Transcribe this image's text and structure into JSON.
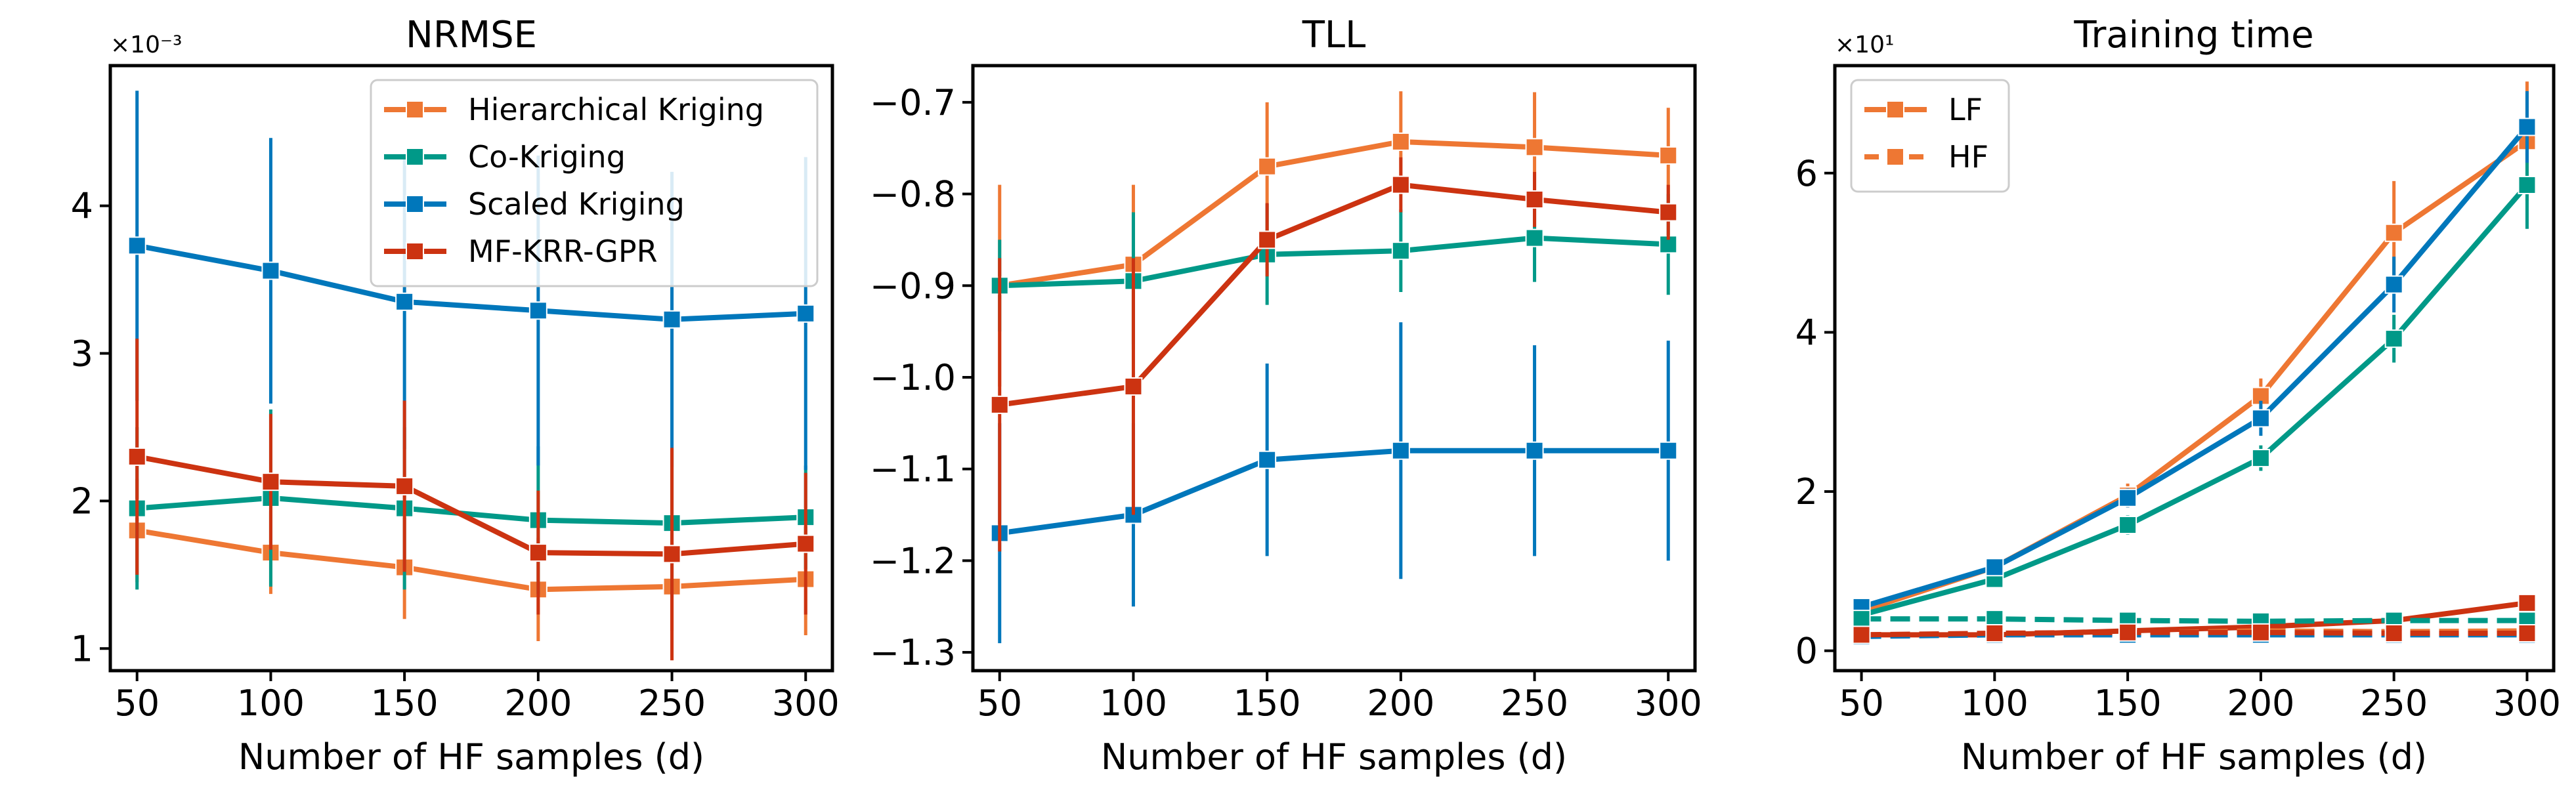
{
  "chart_data": [
    {
      "type": "line",
      "title": "NRMSE",
      "xlabel": "Number of HF samples (d)",
      "ylabel": "",
      "multiplier_label": "×10⁻³",
      "x": [
        50,
        100,
        150,
        200,
        250,
        300
      ],
      "xlim": [
        40,
        310
      ],
      "ylim": [
        0.85,
        4.95
      ],
      "xticks": [
        50,
        100,
        150,
        200,
        250,
        300
      ],
      "xtick_labels": [
        "50",
        "100",
        "150",
        "200",
        "250",
        "300"
      ],
      "yticks": [
        1,
        2,
        3,
        4
      ],
      "ytick_labels": [
        "1",
        "2",
        "3",
        "4"
      ],
      "legend_position": "top-right",
      "series": [
        {
          "name": "Hierarchical Kriging",
          "color": "#EE7733",
          "linestyle": "solid",
          "values": [
            1.8,
            1.65,
            1.55,
            1.4,
            1.42,
            1.47
          ],
          "error": [
            0.35,
            0.28,
            0.35,
            0.35,
            0.3,
            0.38
          ]
        },
        {
          "name": "Co-Kriging",
          "color": "#009988",
          "linestyle": "solid",
          "values": [
            1.95,
            2.02,
            1.95,
            1.87,
            1.85,
            1.89
          ],
          "error": [
            0.55,
            0.6,
            0.55,
            0.5,
            0.5,
            0.35
          ]
        },
        {
          "name": "Scaled Kriging",
          "color": "#0077BB",
          "linestyle": "solid",
          "values": [
            3.73,
            3.56,
            3.35,
            3.29,
            3.23,
            3.27
          ],
          "error": [
            1.05,
            0.9,
            1.0,
            1.05,
            1.0,
            1.06
          ]
        },
        {
          "name": "MF-KRR-GPR",
          "color": "#CC3311",
          "linestyle": "solid",
          "values": [
            2.3,
            2.13,
            2.1,
            1.65,
            1.64,
            1.71
          ],
          "error": [
            0.8,
            0.46,
            0.58,
            0.42,
            0.72,
            0.48
          ]
        }
      ]
    },
    {
      "type": "line",
      "title": "TLL",
      "xlabel": "Number of HF samples (d)",
      "ylabel": "",
      "x": [
        50,
        100,
        150,
        200,
        250,
        300
      ],
      "xlim": [
        40,
        310
      ],
      "ylim": [
        -1.32,
        -0.66
      ],
      "xticks": [
        50,
        100,
        150,
        200,
        250,
        300
      ],
      "xtick_labels": [
        "50",
        "100",
        "150",
        "200",
        "250",
        "300"
      ],
      "yticks": [
        -0.7,
        -0.8,
        -0.9,
        -1.0,
        -1.1,
        -1.2,
        -1.3
      ],
      "ytick_labels": [
        "−0.7",
        "−0.8",
        "−0.9",
        "−1.0",
        "−1.1",
        "−1.2",
        "−1.3"
      ],
      "series": [
        {
          "name": "Hierarchical Kriging",
          "color": "#EE7733",
          "linestyle": "solid",
          "values": [
            -0.9,
            -0.877,
            -0.77,
            -0.743,
            -0.749,
            -0.758
          ],
          "error": [
            0.11,
            0.087,
            0.07,
            0.055,
            0.06,
            0.052
          ]
        },
        {
          "name": "Co-Kriging",
          "color": "#009988",
          "linestyle": "solid",
          "values": [
            -0.9,
            -0.895,
            -0.866,
            -0.862,
            -0.848,
            -0.855
          ],
          "error": [
            0.05,
            0.075,
            0.055,
            0.045,
            0.048,
            0.055
          ]
        },
        {
          "name": "Scaled Kriging",
          "color": "#0077BB",
          "linestyle": "solid",
          "values": [
            -1.17,
            -1.15,
            -1.09,
            -1.08,
            -1.08,
            -1.08
          ],
          "error": [
            0.12,
            0.1,
            0.105,
            0.14,
            0.115,
            0.12
          ]
        },
        {
          "name": "MF-KRR-GPR",
          "color": "#CC3311",
          "linestyle": "solid",
          "values": [
            -1.03,
            -1.01,
            -0.85,
            -0.79,
            -0.806,
            -0.82
          ],
          "error": [
            0.16,
            0.14,
            0.04,
            0.03,
            0.03,
            0.03
          ]
        }
      ]
    },
    {
      "type": "line",
      "title": "Training time",
      "xlabel": "Number of HF samples (d)",
      "ylabel": "",
      "multiplier_label": "×10¹",
      "x": [
        50,
        100,
        150,
        200,
        250,
        300
      ],
      "xlim": [
        40,
        310
      ],
      "ylim": [
        -0.25,
        7.35
      ],
      "xticks": [
        50,
        100,
        150,
        200,
        250,
        300
      ],
      "xtick_labels": [
        "50",
        "100",
        "150",
        "200",
        "250",
        "300"
      ],
      "yticks": [
        0,
        2,
        4,
        6
      ],
      "ytick_labels": [
        "0",
        "2",
        "4",
        "6"
      ],
      "legend_position": "top-left",
      "style_legend": [
        {
          "label": "LF",
          "linestyle": "solid"
        },
        {
          "label": "HF",
          "linestyle": "dashed"
        }
      ],
      "series": [
        {
          "color": "#EE7733",
          "linestyle": "solid",
          "values": [
            0.5,
            1.05,
            1.95,
            3.2,
            5.25,
            6.4
          ],
          "error": [
            0.06,
            0.1,
            0.15,
            0.22,
            0.65,
            0.75
          ]
        },
        {
          "color": "#009988",
          "linestyle": "solid",
          "values": [
            0.45,
            0.9,
            1.58,
            2.42,
            3.92,
            5.85
          ],
          "error": [
            0.05,
            0.1,
            0.12,
            0.16,
            0.3,
            0.55
          ]
        },
        {
          "color": "#0077BB",
          "linestyle": "solid",
          "values": [
            0.55,
            1.05,
            1.92,
            2.92,
            4.6,
            6.58
          ],
          "error": [
            0.05,
            0.1,
            0.12,
            0.22,
            0.35,
            0.45
          ]
        },
        {
          "color": "#CC3311",
          "linestyle": "solid",
          "values": [
            0.2,
            0.2,
            0.25,
            0.3,
            0.38,
            0.6
          ],
          "error": [
            0.04,
            0.04,
            0.05,
            0.05,
            0.06,
            0.08
          ]
        },
        {
          "color": "#EE7733",
          "linestyle": "dashed",
          "values": [
            0.2,
            0.2,
            0.22,
            0.25,
            0.24,
            0.25
          ],
          "error": [
            0.05,
            0.05,
            0.05,
            0.06,
            0.05,
            0.05
          ]
        },
        {
          "color": "#009988",
          "linestyle": "dashed",
          "values": [
            0.4,
            0.4,
            0.38,
            0.37,
            0.38,
            0.38
          ],
          "error": [
            0.04,
            0.04,
            0.04,
            0.04,
            0.04,
            0.04
          ]
        },
        {
          "color": "#0077BB",
          "linestyle": "dashed",
          "values": [
            0.18,
            0.2,
            0.2,
            0.2,
            0.2,
            0.2
          ],
          "error": [
            0.04,
            0.04,
            0.04,
            0.04,
            0.04,
            0.04
          ]
        },
        {
          "color": "#CC3311",
          "linestyle": "dashed",
          "values": [
            0.2,
            0.22,
            0.23,
            0.23,
            0.22,
            0.22
          ],
          "error": [
            0.04,
            0.04,
            0.04,
            0.04,
            0.04,
            0.04
          ]
        }
      ]
    }
  ]
}
